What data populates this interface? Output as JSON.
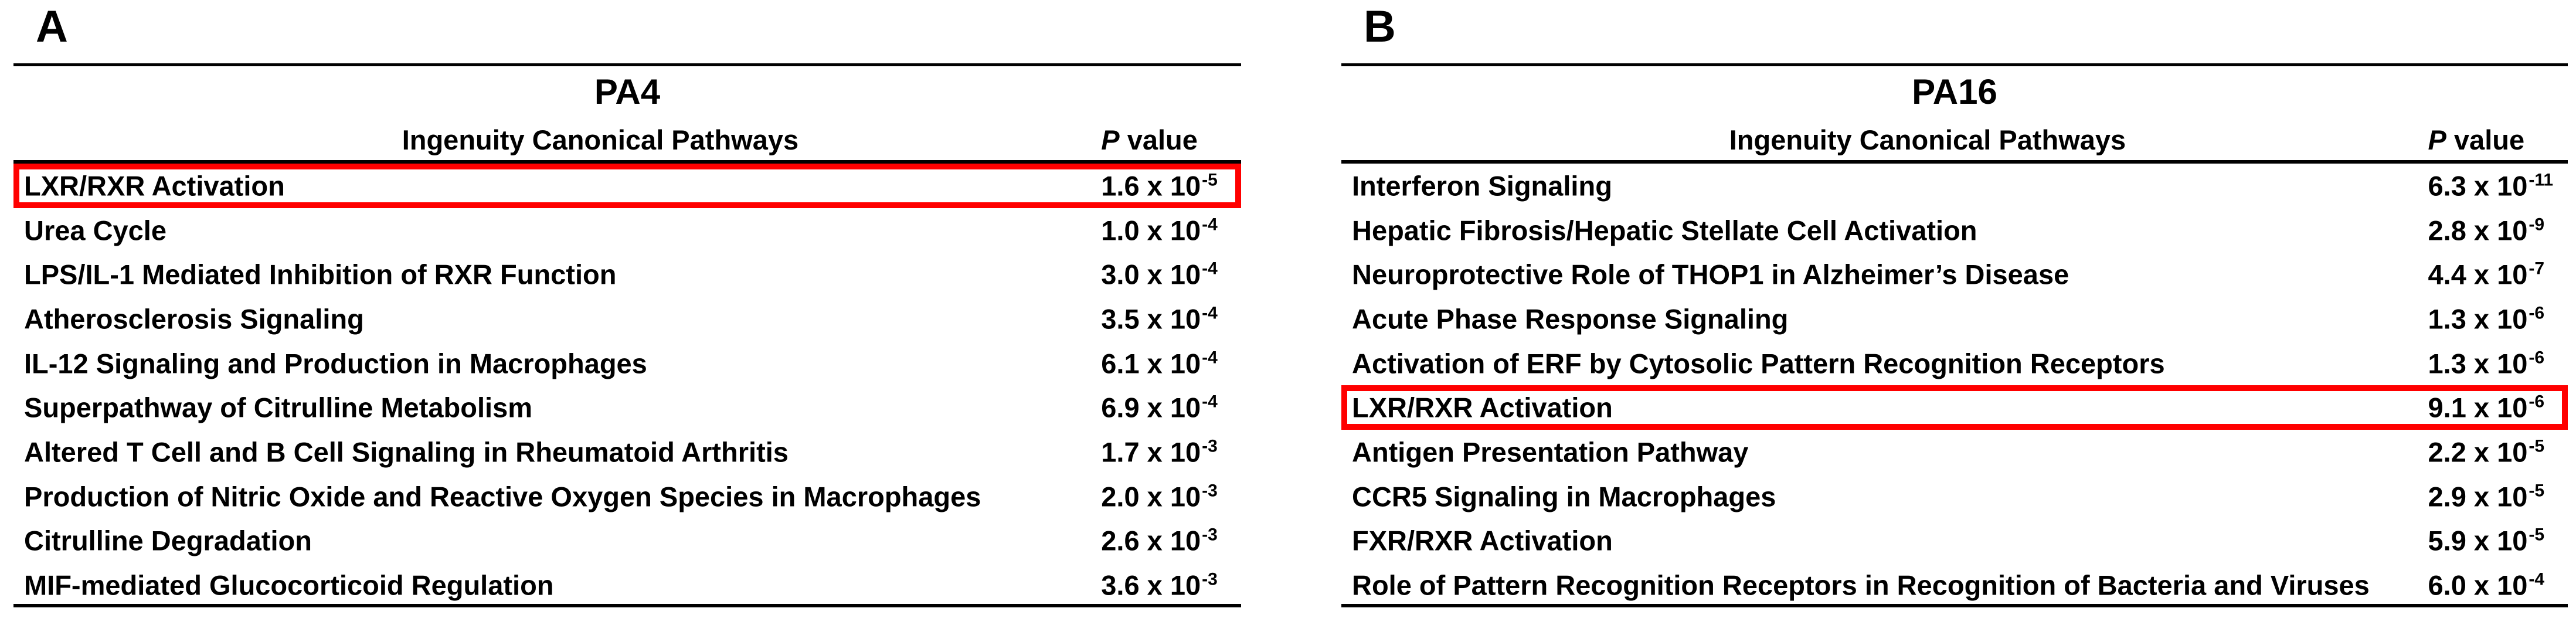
{
  "figure": {
    "colors": {
      "highlight_box": "#ff0000",
      "text": "#000000",
      "rule": "#000000",
      "background": "#ffffff"
    },
    "panels": [
      {
        "label": "A",
        "title": "PA4",
        "columns": {
          "pathway_header": "Ingenuity Canonical Pathways",
          "p_header_italic": "P",
          "p_header_rest": " value"
        },
        "rows": [
          {
            "pathway": "LXR/RXR Activation",
            "p_base": "1.6 x 10",
            "p_exp": "-5",
            "highlight": true
          },
          {
            "pathway": "Urea Cycle",
            "p_base": "1.0 x 10",
            "p_exp": "-4",
            "highlight": false
          },
          {
            "pathway": "LPS/IL-1 Mediated Inhibition of RXR Function",
            "p_base": "3.0 x 10",
            "p_exp": "-4",
            "highlight": false
          },
          {
            "pathway": "Atherosclerosis Signaling",
            "p_base": "3.5 x 10",
            "p_exp": "-4",
            "highlight": false
          },
          {
            "pathway": "IL-12 Signaling and Production in Macrophages",
            "p_base": "6.1 x 10",
            "p_exp": "-4",
            "highlight": false
          },
          {
            "pathway": "Superpathway of Citrulline Metabolism",
            "p_base": "6.9 x 10",
            "p_exp": "-4",
            "highlight": false
          },
          {
            "pathway": "Altered T Cell and B Cell Signaling in Rheumatoid Arthritis",
            "p_base": "1.7 x 10",
            "p_exp": "-3",
            "highlight": false
          },
          {
            "pathway": "Production of Nitric Oxide and Reactive Oxygen Species in Macrophages",
            "p_base": "2.0 x 10",
            "p_exp": "-3",
            "highlight": false
          },
          {
            "pathway": "Citrulline Degradation",
            "p_base": "2.6 x 10",
            "p_exp": "-3",
            "highlight": false
          },
          {
            "pathway": "MIF-mediated Glucocorticoid Regulation",
            "p_base": "3.6 x 10",
            "p_exp": "-3",
            "highlight": false
          }
        ]
      },
      {
        "label": "B",
        "title": "PA16",
        "columns": {
          "pathway_header": "Ingenuity Canonical Pathways",
          "p_header_italic": "P",
          "p_header_rest": " value"
        },
        "rows": [
          {
            "pathway": "Interferon Signaling",
            "p_base": "6.3 x 10",
            "p_exp": "-11",
            "highlight": false
          },
          {
            "pathway": "Hepatic Fibrosis/Hepatic Stellate Cell Activation",
            "p_base": "2.8 x 10",
            "p_exp": "-9",
            "highlight": false
          },
          {
            "pathway": "Neuroprotective Role of THOP1 in Alzheimer’s Disease",
            "p_base": "4.4 x 10",
            "p_exp": "-7",
            "highlight": false
          },
          {
            "pathway": "Acute Phase Response Signaling",
            "p_base": "1.3 x 10",
            "p_exp": "-6",
            "highlight": false
          },
          {
            "pathway": "Activation of ERF by Cytosolic Pattern Recognition Receptors",
            "p_base": "1.3 x 10",
            "p_exp": "-6",
            "highlight": false
          },
          {
            "pathway": "LXR/RXR Activation",
            "p_base": "9.1 x 10",
            "p_exp": "-6",
            "highlight": true
          },
          {
            "pathway": "Antigen Presentation Pathway",
            "p_base": "2.2 x 10",
            "p_exp": "-5",
            "highlight": false
          },
          {
            "pathway": "CCR5 Signaling in Macrophages",
            "p_base": "2.9 x 10",
            "p_exp": "-5",
            "highlight": false
          },
          {
            "pathway": "FXR/RXR Activation",
            "p_base": "5.9 x 10",
            "p_exp": "-5",
            "highlight": false
          },
          {
            "pathway": "Role of Pattern Recognition Receptors in Recognition of Bacteria and Viruses",
            "p_base": "6.0 x 10",
            "p_exp": "-4",
            "highlight": false
          }
        ]
      }
    ]
  },
  "chart_data": [
    {
      "type": "table",
      "title": "PA4",
      "columns": [
        "Ingenuity Canonical Pathways",
        "P value"
      ],
      "rows": [
        [
          "LXR/RXR Activation",
          "1.6 x 10^-5"
        ],
        [
          "Urea Cycle",
          "1.0 x 10^-4"
        ],
        [
          "LPS/IL-1 Mediated Inhibition of RXR Function",
          "3.0 x 10^-4"
        ],
        [
          "Atherosclerosis Signaling",
          "3.5 x 10^-4"
        ],
        [
          "IL-12 Signaling and Production in Macrophages",
          "6.1 x 10^-4"
        ],
        [
          "Superpathway of Citrulline Metabolism",
          "6.9 x 10^-4"
        ],
        [
          "Altered T Cell and B Cell Signaling in Rheumatoid Arthritis",
          "1.7 x 10^-3"
        ],
        [
          "Production of Nitric Oxide and Reactive Oxygen Species in Macrophages",
          "2.0 x 10^-3"
        ],
        [
          "Citrulline Degradation",
          "2.6 x 10^-3"
        ],
        [
          "MIF-mediated Glucocorticoid Regulation",
          "3.6 x 10^-3"
        ]
      ],
      "highlighted_row": "LXR/RXR Activation"
    },
    {
      "type": "table",
      "title": "PA16",
      "columns": [
        "Ingenuity Canonical Pathways",
        "P value"
      ],
      "rows": [
        [
          "Interferon Signaling",
          "6.3 x 10^-11"
        ],
        [
          "Hepatic Fibrosis/Hepatic Stellate Cell Activation",
          "2.8 x 10^-9"
        ],
        [
          "Neuroprotective Role of THOP1 in Alzheimer’s Disease",
          "4.4 x 10^-7"
        ],
        [
          "Acute Phase Response Signaling",
          "1.3 x 10^-6"
        ],
        [
          "Activation of ERF by Cytosolic Pattern Recognition Receptors",
          "1.3 x 10^-6"
        ],
        [
          "LXR/RXR Activation",
          "9.1 x 10^-6"
        ],
        [
          "Antigen Presentation Pathway",
          "2.2 x 10^-5"
        ],
        [
          "CCR5 Signaling in Macrophages",
          "2.9 x 10^-5"
        ],
        [
          "FXR/RXR Activation",
          "5.9 x 10^-5"
        ],
        [
          "Role of Pattern Recognition Receptors in Recognition of Bacteria and Viruses",
          "6.0 x 10^-4"
        ]
      ],
      "highlighted_row": "LXR/RXR Activation"
    }
  ]
}
